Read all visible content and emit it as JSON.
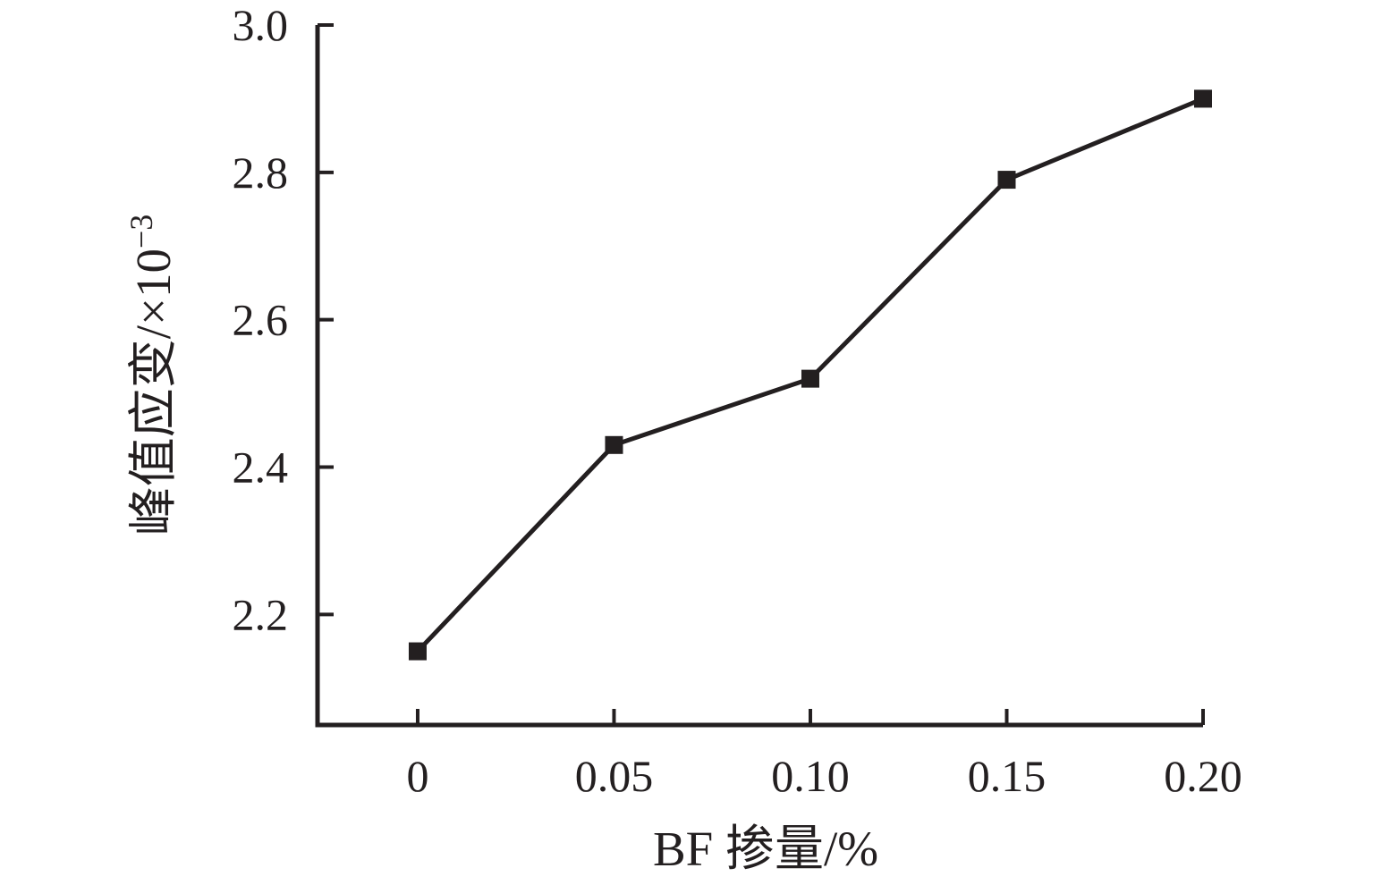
{
  "figure": {
    "background_color": "#ffffff",
    "ink_color": "#231f20"
  },
  "chart_data": {
    "type": "line",
    "title": "",
    "xlabel": "BF 掺量/%",
    "ylabel": "峰值应变/×10⁻³",
    "ylabel_main": "峰值应变/×10",
    "ylabel_sup": "−3",
    "series": [
      {
        "name": "峰值应变",
        "x": [
          0,
          0.05,
          0.1,
          0.15,
          0.2
        ],
        "y": [
          2.15,
          2.43,
          2.52,
          2.79,
          2.9
        ],
        "marker": "filled-square",
        "line_color": "#231f20",
        "marker_color": "#231f20"
      }
    ],
    "x_ticks": [
      {
        "v": 0,
        "label": "0"
      },
      {
        "v": 0.05,
        "label": "0.05"
      },
      {
        "v": 0.1,
        "label": "0.10"
      },
      {
        "v": 0.15,
        "label": "0.15"
      },
      {
        "v": 0.2,
        "label": "0.20"
      }
    ],
    "y_ticks": [
      {
        "v": 2.2,
        "label": "2.2"
      },
      {
        "v": 2.4,
        "label": "2.4"
      },
      {
        "v": 2.6,
        "label": "2.6"
      },
      {
        "v": 2.8,
        "label": "2.8"
      },
      {
        "v": 3.0,
        "label": "3.0"
      }
    ],
    "xlim": [
      -0.0255,
      0.2
    ],
    "ylim": [
      2.05,
      3.0
    ],
    "grid": false,
    "legend_position": "none",
    "tick_direction": "in"
  }
}
